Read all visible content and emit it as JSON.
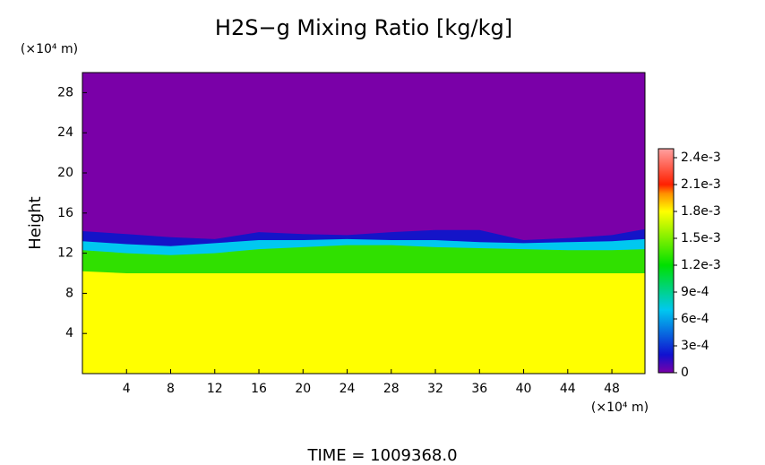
{
  "chart_data": {
    "type": "layered-contour",
    "title": "H2S−g Mixing Ratio [kg/kg]",
    "y_label": "Height",
    "y_unit": "(×10⁴ m)",
    "x_unit": "(×10⁴ m)",
    "footer": "TIME = 1009368.0",
    "xlim": [
      0,
      51
    ],
    "ylim": [
      0,
      30
    ],
    "xticks": [
      4,
      8,
      12,
      16,
      20,
      24,
      28,
      32,
      36,
      40,
      44,
      48
    ],
    "yticks": [
      4,
      8,
      12,
      16,
      20,
      24,
      28
    ],
    "clim": [
      0,
      0.0025
    ],
    "cticks": [
      0,
      {
        "value": 0.0003,
        "label": "3e-4"
      },
      {
        "value": 0.0006,
        "label": "6e-4"
      },
      {
        "value": 0.0009,
        "label": "9e-4"
      },
      {
        "value": 0.0012,
        "label": "1.2e-3"
      },
      {
        "value": 0.0015,
        "label": "1.5e-3"
      },
      {
        "value": 0.0018,
        "label": "1.8e-3"
      },
      {
        "value": 0.0021,
        "label": "2.1e-3"
      },
      {
        "value": 0.0024,
        "label": "2.4e-3"
      }
    ],
    "colormap": [
      {
        "value": 0,
        "color": "#7a00a8"
      },
      {
        "value": 0.0002,
        "color": "#1010d0"
      },
      {
        "value": 0.0007,
        "color": "#00c8f0"
      },
      {
        "value": 0.0012,
        "color": "#00e000"
      },
      {
        "value": 0.0018,
        "color": "#ffff00"
      },
      {
        "value": 0.002,
        "color": "#ff9000"
      },
      {
        "value": 0.0021,
        "color": "#ff2000"
      },
      {
        "value": 0.0025,
        "color": "#ffa0a0"
      }
    ],
    "x": [
      0,
      4,
      8,
      12,
      16,
      20,
      24,
      28,
      32,
      36,
      40,
      44,
      48,
      51
    ],
    "layers": [
      {
        "value": 0.0003,
        "color": "#1414c8",
        "top": [
          14.2,
          13.9,
          13.6,
          13.4,
          14.1,
          13.9,
          13.8,
          14.1,
          14.3,
          14.3,
          13.3,
          13.5,
          13.8,
          14.4
        ]
      },
      {
        "value": 0.0008,
        "color": "#00c8f0",
        "top": [
          13.2,
          12.9,
          12.7,
          13.0,
          13.3,
          13.3,
          13.4,
          13.3,
          13.3,
          13.1,
          13.0,
          13.1,
          13.2,
          13.4
        ]
      },
      {
        "value": 0.0013,
        "color": "#30e000",
        "top": [
          12.3,
          12.0,
          11.8,
          12.0,
          12.4,
          12.6,
          12.8,
          12.8,
          12.6,
          12.5,
          12.4,
          12.3,
          12.3,
          12.4
        ]
      },
      {
        "value": 0.0018,
        "color": "#ffff00",
        "top": [
          10.2,
          10.0,
          10.0,
          10.0,
          10.0,
          10.0,
          10.0,
          10.0,
          10.0,
          10.0,
          10.0,
          10.0,
          10.0,
          10.0
        ]
      }
    ]
  }
}
